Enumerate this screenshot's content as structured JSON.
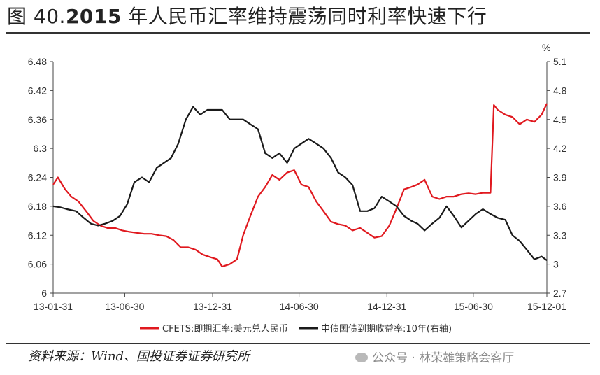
{
  "header": {
    "title_prefix": "图 40.",
    "title_year": "2015",
    "title_rest": " 年人民币汇率维持震荡同时利率快速下行"
  },
  "footer": {
    "source": "资料来源：Wind、国投证券证券研究所",
    "watermark": "公众号 · 林荣雄策略会客厅"
  },
  "chart_data": {
    "type": "line",
    "x_tick_labels": [
      "13-01-31",
      "13-06-30",
      "13-12-31",
      "14-06-30",
      "14-12-31",
      "15-06-30",
      "15-12-01"
    ],
    "x_range": [
      "2013-01-31",
      "2015-12-01"
    ],
    "y_left": {
      "ticks": [
        "6.48",
        "6.42",
        "6.36",
        "6.3",
        "6.24",
        "6.18",
        "6.12",
        "6.06",
        "6"
      ],
      "range": [
        6.0,
        6.48
      ]
    },
    "y_right": {
      "unit": "%",
      "ticks": [
        "5.1",
        "4.8",
        "4.5",
        "4.2",
        "3.9",
        "3.6",
        "3.3",
        "3",
        "2.7"
      ],
      "range": [
        2.7,
        5.1
      ]
    },
    "grid": false,
    "legend_position": "bottom",
    "series": [
      {
        "name": "CFETS:即期汇率:美元兑人民币",
        "axis": "left",
        "color": "#e0191f",
        "x": [
          "2013-01-31",
          "2013-02-10",
          "2013-02-25",
          "2013-03-10",
          "2013-03-25",
          "2013-04-10",
          "2013-04-25",
          "2013-05-10",
          "2013-05-25",
          "2013-06-10",
          "2013-06-25",
          "2013-07-10",
          "2013-07-25",
          "2013-08-10",
          "2013-08-25",
          "2013-09-10",
          "2013-09-25",
          "2013-10-10",
          "2013-10-25",
          "2013-11-10",
          "2013-11-25",
          "2013-12-10",
          "2013-12-25",
          "2014-01-10",
          "2014-01-20",
          "2014-02-05",
          "2014-02-20",
          "2014-03-05",
          "2014-03-20",
          "2014-04-05",
          "2014-04-20",
          "2014-05-05",
          "2014-05-20",
          "2014-06-05",
          "2014-06-20",
          "2014-07-05",
          "2014-07-20",
          "2014-08-05",
          "2014-08-20",
          "2014-09-05",
          "2014-09-20",
          "2014-10-05",
          "2014-10-20",
          "2014-11-05",
          "2014-11-20",
          "2014-12-05",
          "2014-12-20",
          "2015-01-05",
          "2015-01-20",
          "2015-02-05",
          "2015-02-20",
          "2015-03-05",
          "2015-03-20",
          "2015-04-05",
          "2015-04-20",
          "2015-05-05",
          "2015-05-20",
          "2015-06-05",
          "2015-06-20",
          "2015-07-05",
          "2015-07-20",
          "2015-08-05",
          "2015-08-12",
          "2015-08-20",
          "2015-09-05",
          "2015-09-20",
          "2015-10-05",
          "2015-10-20",
          "2015-11-05",
          "2015-11-20",
          "2015-12-01"
        ],
        "values": [
          6.225,
          6.24,
          6.215,
          6.2,
          6.19,
          6.17,
          6.15,
          6.14,
          6.135,
          6.135,
          6.13,
          6.127,
          6.125,
          6.123,
          6.123,
          6.12,
          6.118,
          6.11,
          6.095,
          6.095,
          6.09,
          6.08,
          6.075,
          6.07,
          6.055,
          6.06,
          6.07,
          6.12,
          6.16,
          6.2,
          6.22,
          6.245,
          6.235,
          6.25,
          6.255,
          6.225,
          6.22,
          6.19,
          6.17,
          6.148,
          6.143,
          6.14,
          6.13,
          6.135,
          6.125,
          6.115,
          6.118,
          6.14,
          6.175,
          6.215,
          6.22,
          6.225,
          6.235,
          6.2,
          6.195,
          6.2,
          6.2,
          6.205,
          6.207,
          6.205,
          6.208,
          6.208,
          6.39,
          6.38,
          6.37,
          6.365,
          6.35,
          6.36,
          6.355,
          6.37,
          6.393
        ]
      },
      {
        "name": "中债国债到期收益率:10年(右轴)",
        "axis": "right",
        "color": "#1a1a1a",
        "x": [
          "2013-01-31",
          "2013-02-15",
          "2013-03-01",
          "2013-03-20",
          "2013-04-05",
          "2013-04-20",
          "2013-05-05",
          "2013-05-20",
          "2013-06-05",
          "2013-06-20",
          "2013-07-05",
          "2013-07-20",
          "2013-08-05",
          "2013-08-20",
          "2013-09-05",
          "2013-09-20",
          "2013-10-05",
          "2013-10-20",
          "2013-11-05",
          "2013-11-20",
          "2013-12-05",
          "2013-12-20",
          "2014-01-05",
          "2014-01-20",
          "2014-02-05",
          "2014-02-20",
          "2014-03-05",
          "2014-03-20",
          "2014-04-05",
          "2014-04-20",
          "2014-05-05",
          "2014-05-20",
          "2014-06-05",
          "2014-06-20",
          "2014-07-05",
          "2014-07-20",
          "2014-08-05",
          "2014-08-20",
          "2014-09-05",
          "2014-09-20",
          "2014-10-05",
          "2014-10-20",
          "2014-11-05",
          "2014-11-20",
          "2014-12-05",
          "2014-12-20",
          "2015-01-05",
          "2015-01-20",
          "2015-02-05",
          "2015-02-20",
          "2015-03-05",
          "2015-03-20",
          "2015-04-05",
          "2015-04-20",
          "2015-05-05",
          "2015-05-20",
          "2015-06-05",
          "2015-06-20",
          "2015-07-05",
          "2015-07-20",
          "2015-08-05",
          "2015-08-20",
          "2015-09-05",
          "2015-09-20",
          "2015-10-05",
          "2015-10-20",
          "2015-11-05",
          "2015-11-20",
          "2015-12-01"
        ],
        "values": [
          3.6,
          3.59,
          3.57,
          3.55,
          3.48,
          3.42,
          3.4,
          3.42,
          3.45,
          3.5,
          3.62,
          3.85,
          3.9,
          3.85,
          4.0,
          4.05,
          4.1,
          4.25,
          4.5,
          4.63,
          4.55,
          4.6,
          4.6,
          4.6,
          4.5,
          4.5,
          4.5,
          4.45,
          4.4,
          4.15,
          4.1,
          4.15,
          4.05,
          4.2,
          4.25,
          4.3,
          4.25,
          4.2,
          4.1,
          3.95,
          3.9,
          3.82,
          3.55,
          3.55,
          3.58,
          3.7,
          3.65,
          3.6,
          3.5,
          3.45,
          3.42,
          3.35,
          3.42,
          3.48,
          3.6,
          3.5,
          3.38,
          3.45,
          3.52,
          3.57,
          3.52,
          3.48,
          3.46,
          3.3,
          3.24,
          3.15,
          3.05,
          3.08,
          3.04
        ]
      }
    ]
  }
}
